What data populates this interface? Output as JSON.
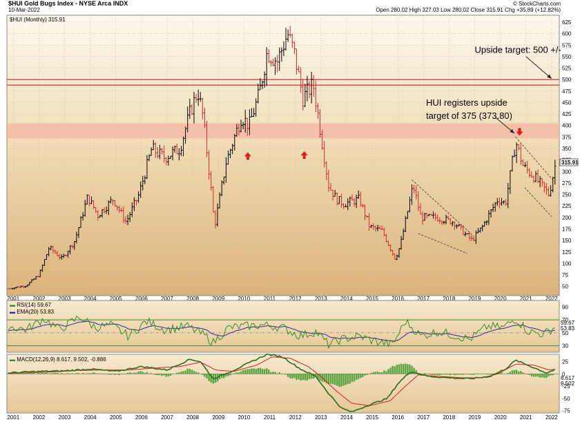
{
  "header": {
    "title": "$HUI Gold Bugs Index - NYSE Arca INDX",
    "date": "10-Mar-2022",
    "ohlc": "Open 280.02  High 327.03  Low 280.02  Close 315.91  Chg +35.89 (+12.82%)",
    "watermark": "© StockCharts.com"
  },
  "colors": {
    "price_bg_top": "#fbf6ea",
    "price_bg_bottom": "#dbb27a",
    "red": "#cc2222",
    "zone": "#f4b6a2",
    "grid": "#d8c4a8",
    "green": "#3a8a2a"
  },
  "chart_data": [
    {
      "type": "ohlc",
      "legend": "$HUI (Monthly) 315.91",
      "last_label": "315.91",
      "yticks": [
        50,
        75,
        100,
        125,
        150,
        175,
        200,
        225,
        250,
        275,
        300,
        325,
        350,
        375,
        400,
        425,
        450,
        475,
        500,
        525,
        550,
        575,
        600,
        625
      ],
      "ylim": [
        30,
        640
      ],
      "xlim": [
        2000.75,
        2022.3
      ],
      "xticks": [
        "2001",
        "2002",
        "2003",
        "2004",
        "2005",
        "2006",
        "2007",
        "2008",
        "2009",
        "2010",
        "2011",
        "2012",
        "2013",
        "2014",
        "2015",
        "2016",
        "2017",
        "2018",
        "2019",
        "2020",
        "2021",
        "2022"
      ],
      "anchors": [
        [
          2000.8,
          45
        ],
        [
          2001.5,
          52
        ],
        [
          2002.0,
          75
        ],
        [
          2002.4,
          135
        ],
        [
          2002.9,
          110
        ],
        [
          2003.4,
          150
        ],
        [
          2003.9,
          245
        ],
        [
          2004.3,
          205
        ],
        [
          2004.9,
          240
        ],
        [
          2005.4,
          190
        ],
        [
          2005.9,
          250
        ],
        [
          2006.4,
          350
        ],
        [
          2006.9,
          330
        ],
        [
          2007.5,
          350
        ],
        [
          2007.9,
          430
        ],
        [
          2008.2,
          475
        ],
        [
          2008.4,
          420
        ],
        [
          2008.7,
          270
        ],
        [
          2008.85,
          180
        ],
        [
          2009.3,
          320
        ],
        [
          2009.9,
          420
        ],
        [
          2010.2,
          400
        ],
        [
          2010.6,
          470
        ],
        [
          2010.9,
          560
        ],
        [
          2011.3,
          540
        ],
        [
          2011.7,
          600
        ],
        [
          2011.95,
          560
        ],
        [
          2012.3,
          460
        ],
        [
          2012.7,
          490
        ],
        [
          2012.95,
          400
        ],
        [
          2013.3,
          270
        ],
        [
          2013.6,
          240
        ],
        [
          2013.9,
          230
        ],
        [
          2014.5,
          240
        ],
        [
          2014.9,
          180
        ],
        [
          2015.4,
          170
        ],
        [
          2015.9,
          110
        ],
        [
          2016.1,
          140
        ],
        [
          2016.6,
          270
        ],
        [
          2016.9,
          200
        ],
        [
          2017.5,
          200
        ],
        [
          2018.2,
          190
        ],
        [
          2018.6,
          165
        ],
        [
          2018.9,
          150
        ],
        [
          2019.3,
          180
        ],
        [
          2019.9,
          240
        ],
        [
          2020.2,
          230
        ],
        [
          2020.6,
          365
        ],
        [
          2020.9,
          310
        ],
        [
          2021.3,
          290
        ],
        [
          2021.6,
          270
        ],
        [
          2021.9,
          250
        ],
        [
          2022.15,
          315.91
        ]
      ],
      "horizontal_lines": [
        500,
        488
      ],
      "resistance_zone": [
        372,
        405
      ],
      "channels": [
        {
          "upper": [
            [
              2016.55,
              282
            ],
            [
              2018.95,
              160
            ]
          ],
          "lower": [
            [
              2016.8,
              165
            ],
            [
              2018.7,
              122
            ]
          ]
        },
        {
          "upper": [
            [
              2020.6,
              375
            ],
            [
              2022.1,
              278
            ]
          ],
          "lower": [
            [
              2020.95,
              265
            ],
            [
              2022.0,
              202
            ]
          ]
        }
      ],
      "up_arrows": [
        [
          2010.15,
          342
        ],
        [
          2012.35,
          344
        ]
      ],
      "down_arrow": [
        2020.75,
        378
      ],
      "annotations": [
        {
          "text": "Upside target: 500 +/-",
          "x": 2019.0,
          "y": 558
        },
        {
          "text": "HUI registers upside",
          "x": 2017.1,
          "y": 443
        },
        {
          "text": "target of 375 (373.80)",
          "x": 2017.1,
          "y": 415
        }
      ]
    },
    {
      "type": "line",
      "legend_rsi": "RSI(14) 59.67",
      "legend_ema": "EMA(20) 53.83",
      "yticks": [
        90,
        70,
        50,
        30
      ],
      "ylim": [
        20,
        100
      ],
      "levels": [
        70,
        30
      ],
      "last_labels": [
        "59.67",
        "53.83"
      ],
      "anchors": [
        [
          2000.8,
          60
        ],
        [
          2001.5,
          55
        ],
        [
          2002.2,
          72
        ],
        [
          2002.8,
          55
        ],
        [
          2003.6,
          75
        ],
        [
          2004.2,
          58
        ],
        [
          2004.8,
          62
        ],
        [
          2005.5,
          45
        ],
        [
          2006.2,
          68
        ],
        [
          2006.9,
          55
        ],
        [
          2007.8,
          60
        ],
        [
          2008.5,
          45
        ],
        [
          2008.8,
          35
        ],
        [
          2009.4,
          58
        ],
        [
          2010.0,
          60
        ],
        [
          2010.8,
          62
        ],
        [
          2011.5,
          58
        ],
        [
          2012.2,
          45
        ],
        [
          2012.8,
          52
        ],
        [
          2013.3,
          32
        ],
        [
          2013.8,
          40
        ],
        [
          2014.5,
          45
        ],
        [
          2015.0,
          38
        ],
        [
          2015.8,
          32
        ],
        [
          2016.3,
          68
        ],
        [
          2016.9,
          45
        ],
        [
          2017.6,
          52
        ],
        [
          2018.3,
          45
        ],
        [
          2018.8,
          40
        ],
        [
          2019.5,
          60
        ],
        [
          2020.1,
          58
        ],
        [
          2020.6,
          72
        ],
        [
          2021.1,
          52
        ],
        [
          2021.7,
          48
        ],
        [
          2022.15,
          59.67
        ]
      ]
    },
    {
      "type": "line",
      "legend": "MACD(12,26,9) 8.617, 9.502, -0.886",
      "yticks": [
        25,
        0,
        -25,
        -50,
        -75
      ],
      "ylim": [
        -80,
        40
      ],
      "last_labels": [
        "8.617",
        "9.502"
      ],
      "macd": [
        [
          2000.8,
          2
        ],
        [
          2002.0,
          5
        ],
        [
          2003.0,
          6
        ],
        [
          2004.0,
          10
        ],
        [
          2005.0,
          5
        ],
        [
          2006.0,
          15
        ],
        [
          2007.0,
          8
        ],
        [
          2007.9,
          30
        ],
        [
          2008.3,
          25
        ],
        [
          2008.8,
          -10
        ],
        [
          2009.5,
          5
        ],
        [
          2010.3,
          25
        ],
        [
          2010.9,
          40
        ],
        [
          2011.5,
          35
        ],
        [
          2012.2,
          10
        ],
        [
          2012.8,
          -5
        ],
        [
          2013.3,
          -40
        ],
        [
          2013.8,
          -70
        ],
        [
          2014.2,
          -78
        ],
        [
          2014.8,
          -65
        ],
        [
          2015.6,
          -50
        ],
        [
          2016.0,
          -20
        ],
        [
          2016.5,
          5
        ],
        [
          2017.2,
          -5
        ],
        [
          2018.0,
          -8
        ],
        [
          2018.8,
          -10
        ],
        [
          2019.6,
          -5
        ],
        [
          2020.2,
          10
        ],
        [
          2020.6,
          28
        ],
        [
          2021.2,
          15
        ],
        [
          2021.8,
          2
        ],
        [
          2022.15,
          8.617
        ]
      ],
      "signal": [
        [
          2000.8,
          1
        ],
        [
          2002.5,
          4
        ],
        [
          2003.5,
          7
        ],
        [
          2004.5,
          8
        ],
        [
          2005.5,
          8
        ],
        [
          2006.5,
          12
        ],
        [
          2007.5,
          15
        ],
        [
          2008.3,
          24
        ],
        [
          2008.9,
          8
        ],
        [
          2009.6,
          5
        ],
        [
          2010.5,
          18
        ],
        [
          2011.1,
          35
        ],
        [
          2011.8,
          32
        ],
        [
          2012.5,
          15
        ],
        [
          2013.0,
          -5
        ],
        [
          2013.6,
          -35
        ],
        [
          2014.2,
          -60
        ],
        [
          2014.9,
          -65
        ],
        [
          2015.7,
          -55
        ],
        [
          2016.3,
          -25
        ],
        [
          2016.8,
          -2
        ],
        [
          2017.6,
          -5
        ],
        [
          2018.5,
          -8
        ],
        [
          2019.3,
          -8
        ],
        [
          2019.9,
          0
        ],
        [
          2020.6,
          20
        ],
        [
          2021.3,
          18
        ],
        [
          2021.9,
          8
        ],
        [
          2022.15,
          9.502
        ]
      ]
    }
  ]
}
